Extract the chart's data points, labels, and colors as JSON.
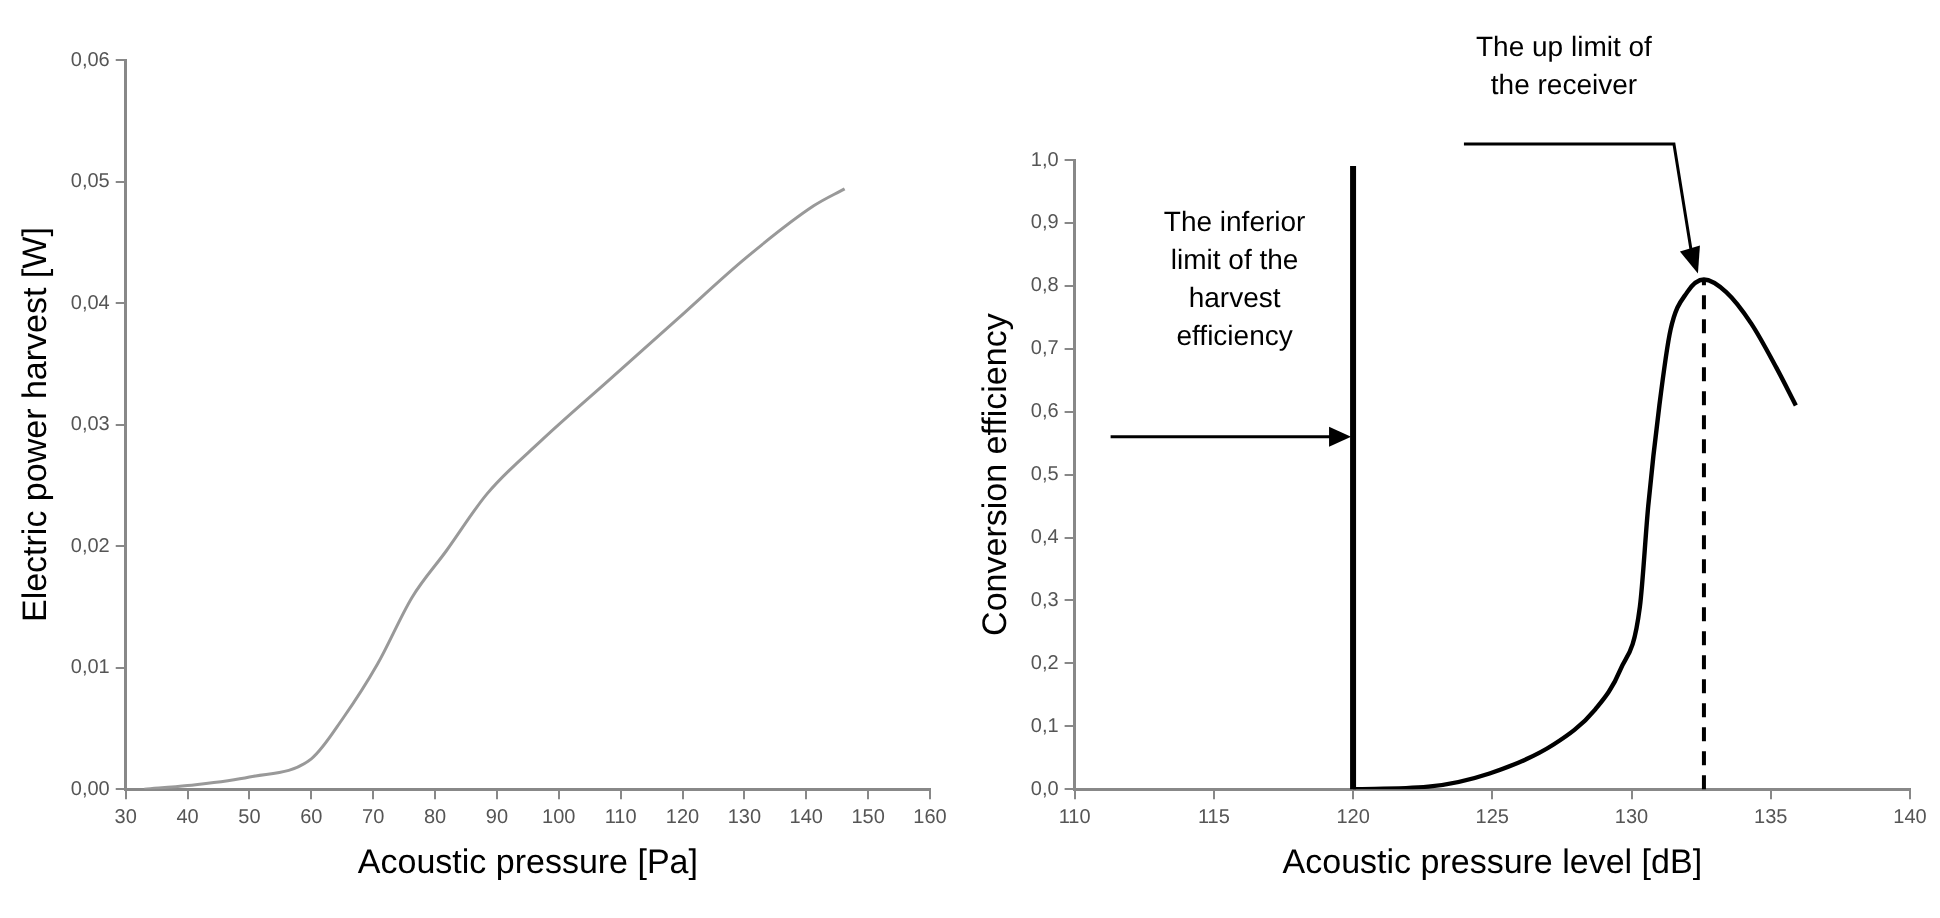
{
  "chart_data": [
    {
      "type": "line",
      "xlabel": "Acoustic pressure [Pa]",
      "ylabel": "Electric power harvest [W]",
      "x": [
        33,
        40,
        50,
        60,
        65.2,
        70.7,
        76.3,
        81.8,
        88.4,
        97.2,
        108.2,
        119.2,
        130.2,
        141.2,
        146.2
      ],
      "series": [
        {
          "color": "#999999",
          "values": [
            0,
            0.0003,
            0.001,
            0.0025,
            0.0059,
            0.0103,
            0.0158,
            0.0196,
            0.0243,
            0.0287,
            0.0337,
            0.0387,
            0.0437,
            0.048,
            0.0494
          ]
        }
      ],
      "xlim": [
        30,
        160
      ],
      "xticks": [
        30,
        40,
        50,
        60,
        70,
        80,
        90,
        100,
        110,
        120,
        130,
        140,
        150,
        160
      ],
      "ylim": [
        0,
        0.06
      ],
      "yticks": [
        {
          "value": 0,
          "label": "0,00"
        },
        {
          "value": 0.01,
          "label": "0,01"
        },
        {
          "value": 0.02,
          "label": "0,02"
        },
        {
          "value": 0.03,
          "label": "0,03"
        },
        {
          "value": 0.04,
          "label": "0,04"
        },
        {
          "value": 0.05,
          "label": "0,05"
        },
        {
          "value": 0.06,
          "label": "0,06"
        }
      ],
      "grid": false,
      "legend": false,
      "marker": "none",
      "line_style": "solid"
    },
    {
      "type": "line",
      "xlabel": "Acoustic pressure level [dB]",
      "ylabel": "Conversion efficiency",
      "x": [
        120,
        122.7,
        124.9,
        127.2,
        128.7,
        129.6,
        130.3,
        130.6,
        131,
        131.4,
        132,
        132.6,
        133.4,
        134.3,
        135.2,
        135.9
      ],
      "series": [
        {
          "color": "#000000",
          "values": [
            0,
            0.004,
            0.025,
            0.071,
            0.127,
            0.19,
            0.29,
            0.45,
            0.61,
            0.73,
            0.79,
            0.81,
            0.79,
            0.74,
            0.67,
            0.61
          ]
        }
      ],
      "xlim": [
        110,
        140
      ],
      "xticks": [
        110,
        115,
        120,
        125,
        130,
        135,
        140
      ],
      "ylim": [
        0,
        1
      ],
      "yticks": [
        {
          "value": 0,
          "label": "0,0"
        },
        {
          "value": 0.1,
          "label": "0,1"
        },
        {
          "value": 0.2,
          "label": "0,2"
        },
        {
          "value": 0.3,
          "label": "0,3"
        },
        {
          "value": 0.4,
          "label": "0,4"
        },
        {
          "value": 0.5,
          "label": "0,5"
        },
        {
          "value": 0.6,
          "label": "0,6"
        },
        {
          "value": 0.7,
          "label": "0,7"
        },
        {
          "value": 0.8,
          "label": "0,8"
        },
        {
          "value": 0.9,
          "label": "0,9"
        },
        {
          "value": 1,
          "label": "1,0"
        }
      ],
      "ref_lines": [
        {
          "axis": "x",
          "value": 120,
          "color": "#000000",
          "line_style": "solid"
        },
        {
          "axis": "x",
          "value": 132.6,
          "color": "#000000",
          "line_style": "dashed"
        }
      ],
      "annotations": [
        "The inferior limit of the harvest efficiency",
        "The up limit of the receiver"
      ],
      "grid": false,
      "legend": false,
      "marker": "none",
      "line_style": "solid"
    }
  ]
}
